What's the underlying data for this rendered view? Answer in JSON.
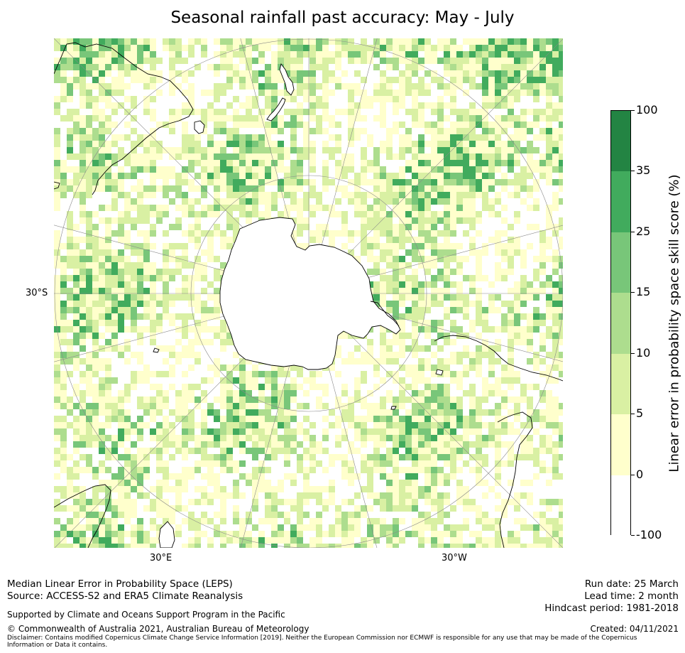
{
  "title": "Seasonal rainfall past accuracy: May - July",
  "map": {
    "labels": {
      "lat": "30°S",
      "lon_left": "30°E",
      "lon_right": "30°W"
    },
    "colors": {
      "land_line": "#000000",
      "grid": "#8a8a8a",
      "ocean_bg": "#ffffff"
    }
  },
  "colorbar": {
    "title": "Linear error in probability space skill score (%)",
    "tick_labels": [
      "100",
      "35",
      "25",
      "15",
      "10",
      "5",
      "0",
      "-100"
    ],
    "bins": [
      {
        "range": "-100 to 0",
        "color": "#ffffff"
      },
      {
        "range": "0 to 5",
        "color": "#ffffcc"
      },
      {
        "range": "5 to 10",
        "color": "#d9f0a3"
      },
      {
        "range": "10 to 15",
        "color": "#addd8e"
      },
      {
        "range": "15 to 25",
        "color": "#78c679"
      },
      {
        "range": "25 to 35",
        "color": "#41ab5d"
      },
      {
        "range": "35 to 100",
        "color": "#238443"
      }
    ]
  },
  "footer": {
    "line1": "Median Linear Error in Probability Space (LEPS)",
    "line2": "Source: ACCESS-S2 and ERA5 Climate Reanalysis",
    "support": "Supported by Climate and Oceans Support Program in the Pacific",
    "copyright": "© Commonwealth of Australia 2021, Australian Bureau of Meteorology",
    "disclaimer1": "Disclaimer: Contains modified Copernicus Climate Change Service Information [2019]. Neither the European Commission nor ECMWF is responsible for any use that may be made of the Copernicus",
    "disclaimer2": "Information or Data it contains.",
    "run_date": "Run date: 25 March",
    "lead_time": "Lead time: 2 month",
    "hindcast": "Hindcast period: 1981-2018",
    "created": "Created: 04/11/2021"
  }
}
